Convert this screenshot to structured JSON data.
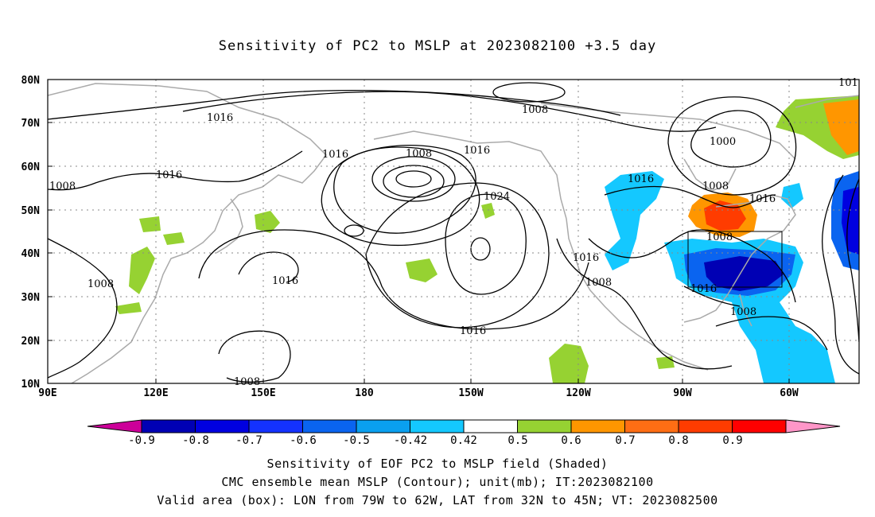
{
  "title": "Sensitivity of PC2 to MSLP at 2023082100 +3.5 day",
  "captions": [
    "Sensitivity of EOF PC2 to MSLP field (Shaded)",
    "CMC ensemble mean MSLP (Contour); unit(mb); IT:2023082100",
    "Valid area (box): LON from 79W to 62W, LAT from 32N to 45N; VT: 2023082500"
  ],
  "map": {
    "lat_ticks": [
      "80N",
      "70N",
      "60N",
      "50N",
      "40N",
      "30N",
      "20N",
      "10N"
    ],
    "lon_ticks": [
      "90E",
      "120E",
      "150E",
      "180",
      "150W",
      "120W",
      "90W",
      "60W"
    ],
    "contour_labels": [
      "1016",
      "1008",
      "1016",
      "1016",
      "1008",
      "1016",
      "1024",
      "1008",
      "1000",
      "1016",
      "1008",
      "1016",
      "1016",
      "1008",
      "1016",
      "1008",
      "1016",
      "1008",
      "1008",
      "101"
    ],
    "valid_box": {
      "lon": [
        "79W",
        "62W"
      ],
      "lat": [
        "32N",
        "45N"
      ]
    }
  },
  "colorbar": {
    "labels": [
      "-0.9",
      "-0.8",
      "-0.7",
      "-0.6",
      "-0.5",
      "-0.42",
      "0.42",
      "0.5",
      "0.6",
      "0.7",
      "0.8",
      "0.9"
    ],
    "colors": [
      "#cc0099",
      "#0000b4",
      "#0000e0",
      "#1432ff",
      "#0a64f0",
      "#0aa0f0",
      "#14c8ff",
      "#ffffff",
      "#96d232",
      "#ff9600",
      "#ff6e14",
      "#ff3c00",
      "#ff0000",
      "#ff96c8"
    ]
  }
}
